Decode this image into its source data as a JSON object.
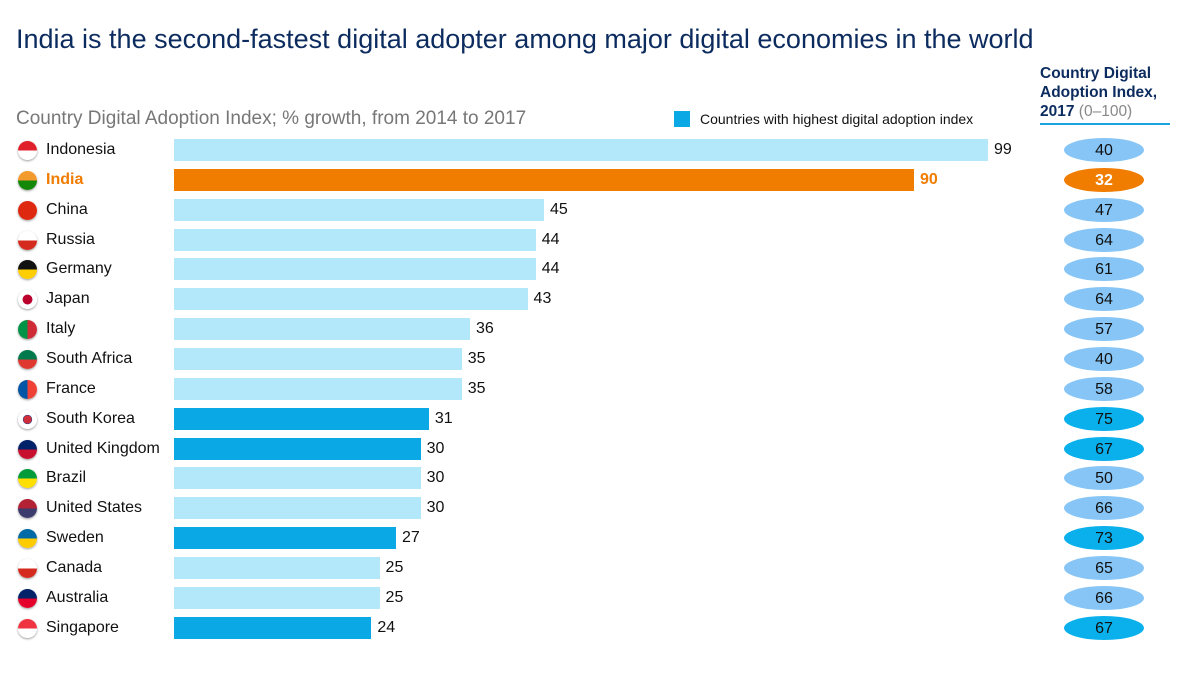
{
  "title": "India is the second-fastest digital adopter among major digital economies in the world",
  "chart_data": {
    "type": "bar",
    "orientation": "horizontal",
    "subtitle": "Country Digital Adoption Index; % growth, from 2014 to 2017",
    "legend": {
      "label": "Countries with highest digital adoption index",
      "placement": "top-right"
    },
    "right_column": {
      "title": "Country Digital Adoption Index, 2017",
      "range_label": "(0–100)"
    },
    "categories": [
      "Indonesia",
      "India",
      "China",
      "Russia",
      "Germany",
      "Japan",
      "Italy",
      "South Africa",
      "France",
      "South Korea",
      "United Kingdom",
      "Brazil",
      "United States",
      "Sweden",
      "Canada",
      "Australia",
      "Singapore"
    ],
    "growth": [
      99,
      90,
      45,
      44,
      44,
      43,
      36,
      35,
      35,
      31,
      30,
      30,
      30,
      27,
      25,
      25,
      24
    ],
    "index_2017": [
      40,
      32,
      47,
      64,
      61,
      64,
      57,
      40,
      58,
      75,
      67,
      50,
      66,
      73,
      65,
      66,
      67
    ],
    "highest_adoption": [
      "South Korea",
      "United Kingdom",
      "Sweden",
      "Singapore"
    ],
    "highlighted": "India",
    "xlim": [
      0,
      100
    ],
    "grid": false,
    "colors": {
      "default_bar": "#b3e8fa",
      "highest_bar": "#0aa9e6",
      "highlight": "#f07c00",
      "default_pill": "#86c5f5",
      "highest_pill": "#0ab0ec"
    },
    "flags": [
      [
        "#e0202a",
        "#fff"
      ],
      [
        "#f39a2c",
        "#138808"
      ],
      [
        "#de2910",
        "#de2910"
      ],
      [
        "#fff",
        "#d52b1e"
      ],
      [
        "#111",
        "#ffce00"
      ],
      [
        "#fff",
        "#fff"
      ],
      [
        "#009246",
        "#ce2b37"
      ],
      [
        "#007a4d",
        "#de3831"
      ],
      [
        "#0055a4",
        "#ef4135"
      ],
      [
        "#fff",
        "#fff"
      ],
      [
        "#012169",
        "#c8102e"
      ],
      [
        "#009c3b",
        "#ffdf00"
      ],
      [
        "#b22234",
        "#3c3b6e"
      ],
      [
        "#006aa7",
        "#fecc00"
      ],
      [
        "#fff",
        "#d52b1e"
      ],
      [
        "#012169",
        "#e4002b"
      ],
      [
        "#ef3340",
        "#fff"
      ]
    ]
  }
}
